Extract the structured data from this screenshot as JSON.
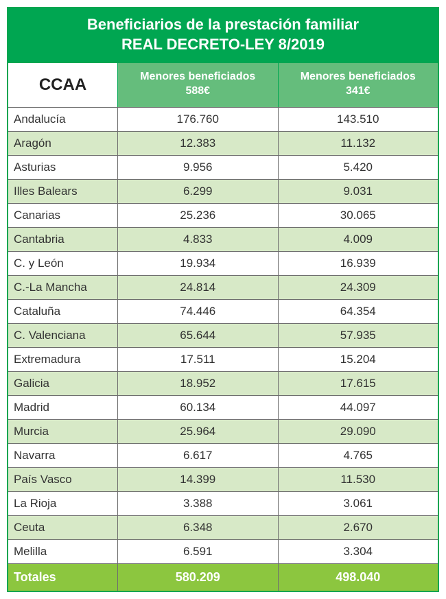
{
  "title": {
    "line1": "Beneficiarios de la prestación familiar",
    "line2": "REAL DECRETO-LEY 8/2019"
  },
  "columns": {
    "ccaa": "CCAA",
    "col1_line1": "Menores beneficiados",
    "col1_line2": "588€",
    "col2_line1": "Menores beneficiados",
    "col2_line2": "341€"
  },
  "rows": [
    {
      "ccaa": "Andalucía",
      "v1": "176.760",
      "v2": "143.510",
      "alt": false
    },
    {
      "ccaa": "Aragón",
      "v1": "12.383",
      "v2": "11.132",
      "alt": true
    },
    {
      "ccaa": "Asturias",
      "v1": "9.956",
      "v2": "5.420",
      "alt": false
    },
    {
      "ccaa": "Illes Balears",
      "v1": "6.299",
      "v2": "9.031",
      "alt": true
    },
    {
      "ccaa": "Canarias",
      "v1": "25.236",
      "v2": "30.065",
      "alt": false
    },
    {
      "ccaa": "Cantabria",
      "v1": "4.833",
      "v2": "4.009",
      "alt": true
    },
    {
      "ccaa": "C. y León",
      "v1": "19.934",
      "v2": "16.939",
      "alt": false
    },
    {
      "ccaa": "C.-La Mancha",
      "v1": "24.814",
      "v2": "24.309",
      "alt": true
    },
    {
      "ccaa": "Cataluña",
      "v1": "74.446",
      "v2": "64.354",
      "alt": false
    },
    {
      "ccaa": "C. Valenciana",
      "v1": "65.644",
      "v2": "57.935",
      "alt": true
    },
    {
      "ccaa": "Extremadura",
      "v1": "17.511",
      "v2": "15.204",
      "alt": false
    },
    {
      "ccaa": "Galicia",
      "v1": "18.952",
      "v2": "17.615",
      "alt": true
    },
    {
      "ccaa": "Madrid",
      "v1": "60.134",
      "v2": "44.097",
      "alt": false
    },
    {
      "ccaa": "Murcia",
      "v1": "25.964",
      "v2": "29.090",
      "alt": true
    },
    {
      "ccaa": "Navarra",
      "v1": "6.617",
      "v2": "4.765",
      "alt": false
    },
    {
      "ccaa": "País Vasco",
      "v1": "14.399",
      "v2": "11.530",
      "alt": true
    },
    {
      "ccaa": "La Rioja",
      "v1": "3.388",
      "v2": "3.061",
      "alt": false
    },
    {
      "ccaa": "Ceuta",
      "v1": "6.348",
      "v2": "2.670",
      "alt": true
    },
    {
      "ccaa": "Melilla",
      "v1": "6.591",
      "v2": "3.304",
      "alt": false
    }
  ],
  "totals": {
    "label": "Totales",
    "v1": "580.209",
    "v2": "498.040"
  },
  "style": {
    "brand_green": "#00a651",
    "header_green": "#65bd7c",
    "alt_row_bg": "#d7e9c7",
    "totals_bg": "#8cc63f",
    "border_gray": "#6e6e6e",
    "text_color": "#333333",
    "title_fontsize": 22,
    "header_fontsize": 16,
    "ccaa_header_fontsize": 24,
    "cell_fontsize": 17,
    "totals_fontsize": 18
  }
}
